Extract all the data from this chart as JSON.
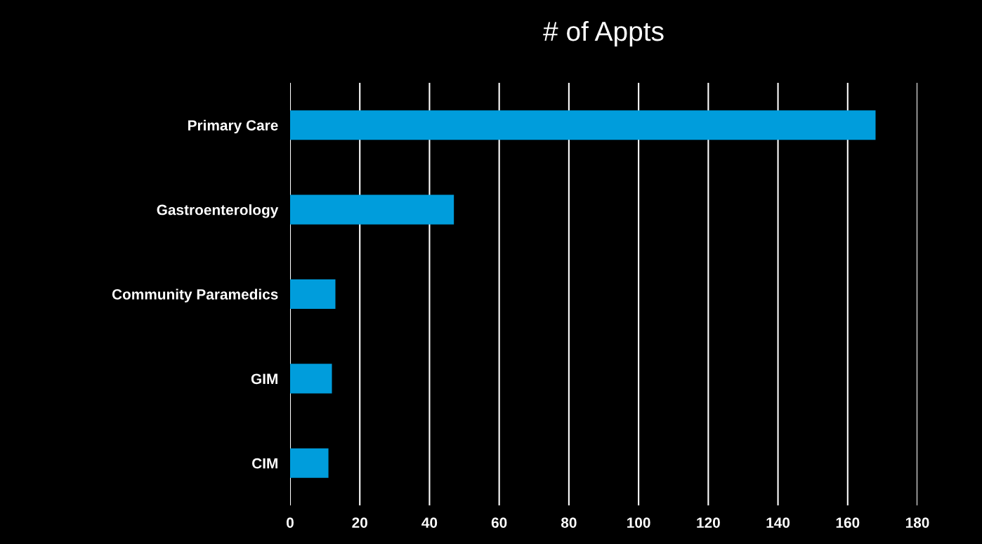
{
  "chart_data": {
    "type": "bar",
    "orientation": "horizontal",
    "title": "# of Appts",
    "categories": [
      "Primary Care",
      "Gastroenterology",
      "Community Paramedics",
      "GIM",
      "CIM"
    ],
    "values": [
      168,
      47,
      13,
      12,
      11
    ],
    "color": "#009ddc",
    "xlim": [
      0,
      180
    ],
    "xticks": [
      0,
      20,
      40,
      60,
      80,
      100,
      120,
      140,
      160,
      180
    ],
    "grid": "x"
  }
}
